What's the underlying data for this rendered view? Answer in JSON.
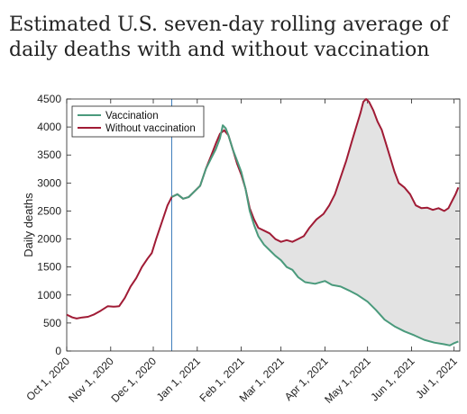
{
  "title": "Estimated U.S. seven-day rolling average of daily deaths with and without vaccination",
  "chart_data": {
    "type": "area",
    "ylabel": "Daily deaths",
    "xlabel": "",
    "ylim": [
      0,
      4500
    ],
    "yticks": [
      0,
      500,
      1000,
      1500,
      2000,
      2500,
      3000,
      3500,
      4000,
      4500
    ],
    "xlim": [
      "2020-10-01",
      "2021-07-05"
    ],
    "xticks": [
      "2020-10-01",
      "2020-11-01",
      "2020-12-01",
      "2021-01-01",
      "2021-02-01",
      "2021-03-01",
      "2021-04-01",
      "2021-05-01",
      "2021-06-01",
      "2021-07-01"
    ],
    "xtick_labels": [
      "Oct 1, 2020",
      "Nov 1, 2020",
      "Dec 1, 2020",
      "Jan 1, 2021",
      "Feb 1, 2021",
      "Mar 1, 2021",
      "Apr 1, 2021",
      "May 1, 2021",
      "Jun 1, 2021",
      "Jul 1, 2021"
    ],
    "reference_line_date": "2020-12-14",
    "shaded_between_series": true,
    "grid": false,
    "legend_position": "top-left",
    "colors": {
      "vaccination": "#4a9a7c",
      "without": "#a01b35",
      "reference": "#3d7dba",
      "shade": "#e3e3e3"
    },
    "series": [
      {
        "name": "Vaccination",
        "points": [
          [
            "2020-12-14",
            2750
          ],
          [
            "2020-12-18",
            2800
          ],
          [
            "2020-12-22",
            2720
          ],
          [
            "2020-12-26",
            2750
          ],
          [
            "2020-12-30",
            2850
          ],
          [
            "2021-01-03",
            2950
          ],
          [
            "2021-01-07",
            3250
          ],
          [
            "2021-01-11",
            3450
          ],
          [
            "2021-01-14",
            3600
          ],
          [
            "2021-01-17",
            3800
          ],
          [
            "2021-01-19",
            4030
          ],
          [
            "2021-01-21",
            3980
          ],
          [
            "2021-01-23",
            3850
          ],
          [
            "2021-01-26",
            3600
          ],
          [
            "2021-01-29",
            3400
          ],
          [
            "2021-02-01",
            3200
          ],
          [
            "2021-02-04",
            2900
          ],
          [
            "2021-02-07",
            2500
          ],
          [
            "2021-02-10",
            2250
          ],
          [
            "2021-02-13",
            2050
          ],
          [
            "2021-02-17",
            1900
          ],
          [
            "2021-02-21",
            1800
          ],
          [
            "2021-02-25",
            1700
          ],
          [
            "2021-03-01",
            1620
          ],
          [
            "2021-03-05",
            1500
          ],
          [
            "2021-03-09",
            1450
          ],
          [
            "2021-03-13",
            1320
          ],
          [
            "2021-03-18",
            1230
          ],
          [
            "2021-03-25",
            1200
          ],
          [
            "2021-04-01",
            1250
          ],
          [
            "2021-04-06",
            1180
          ],
          [
            "2021-04-12",
            1150
          ],
          [
            "2021-04-18",
            1080
          ],
          [
            "2021-04-24",
            1000
          ],
          [
            "2021-05-01",
            880
          ],
          [
            "2021-05-07",
            730
          ],
          [
            "2021-05-13",
            560
          ],
          [
            "2021-05-20",
            440
          ],
          [
            "2021-05-27",
            350
          ],
          [
            "2021-06-03",
            280
          ],
          [
            "2021-06-10",
            200
          ],
          [
            "2021-06-17",
            150
          ],
          [
            "2021-06-24",
            120
          ],
          [
            "2021-06-28",
            100
          ],
          [
            "2021-07-01",
            140
          ],
          [
            "2021-07-04",
            170
          ]
        ]
      },
      {
        "name": "Without vaccination",
        "points": [
          [
            "2020-10-01",
            650
          ],
          [
            "2020-10-05",
            600
          ],
          [
            "2020-10-08",
            580
          ],
          [
            "2020-10-12",
            600
          ],
          [
            "2020-10-16",
            610
          ],
          [
            "2020-10-20",
            650
          ],
          [
            "2020-10-25",
            720
          ],
          [
            "2020-10-30",
            800
          ],
          [
            "2020-11-03",
            790
          ],
          [
            "2020-11-07",
            800
          ],
          [
            "2020-11-11",
            950
          ],
          [
            "2020-11-15",
            1150
          ],
          [
            "2020-11-19",
            1300
          ],
          [
            "2020-11-23",
            1500
          ],
          [
            "2020-11-27",
            1650
          ],
          [
            "2020-11-30",
            1750
          ],
          [
            "2020-12-03",
            2000
          ],
          [
            "2020-12-07",
            2300
          ],
          [
            "2020-12-11",
            2600
          ],
          [
            "2020-12-14",
            2750
          ],
          [
            "2020-12-18",
            2800
          ],
          [
            "2020-12-22",
            2720
          ],
          [
            "2020-12-26",
            2750
          ],
          [
            "2020-12-30",
            2850
          ],
          [
            "2021-01-03",
            2950
          ],
          [
            "2021-01-07",
            3250
          ],
          [
            "2021-01-11",
            3500
          ],
          [
            "2021-01-14",
            3700
          ],
          [
            "2021-01-17",
            3880
          ],
          [
            "2021-01-20",
            3940
          ],
          [
            "2021-01-23",
            3850
          ],
          [
            "2021-01-26",
            3600
          ],
          [
            "2021-01-29",
            3350
          ],
          [
            "2021-02-01",
            3150
          ],
          [
            "2021-02-04",
            2900
          ],
          [
            "2021-02-07",
            2550
          ],
          [
            "2021-02-10",
            2350
          ],
          [
            "2021-02-13",
            2200
          ],
          [
            "2021-02-17",
            2150
          ],
          [
            "2021-02-21",
            2100
          ],
          [
            "2021-02-25",
            2000
          ],
          [
            "2021-03-01",
            1950
          ],
          [
            "2021-03-05",
            1980
          ],
          [
            "2021-03-09",
            1950
          ],
          [
            "2021-03-13",
            2000
          ],
          [
            "2021-03-17",
            2050
          ],
          [
            "2021-03-21",
            2200
          ],
          [
            "2021-03-26",
            2350
          ],
          [
            "2021-03-31",
            2450
          ],
          [
            "2021-04-04",
            2600
          ],
          [
            "2021-04-08",
            2800
          ],
          [
            "2021-04-12",
            3100
          ],
          [
            "2021-04-16",
            3400
          ],
          [
            "2021-04-20",
            3750
          ],
          [
            "2021-04-23",
            4000
          ],
          [
            "2021-04-26",
            4250
          ],
          [
            "2021-04-28",
            4450
          ],
          [
            "2021-04-30",
            4500
          ],
          [
            "2021-05-02",
            4450
          ],
          [
            "2021-05-05",
            4300
          ],
          [
            "2021-05-08",
            4100
          ],
          [
            "2021-05-11",
            3950
          ],
          [
            "2021-05-14",
            3700
          ],
          [
            "2021-05-17",
            3450
          ],
          [
            "2021-05-20",
            3200
          ],
          [
            "2021-05-23",
            3000
          ],
          [
            "2021-05-27",
            2920
          ],
          [
            "2021-05-31",
            2800
          ],
          [
            "2021-06-04",
            2600
          ],
          [
            "2021-06-08",
            2550
          ],
          [
            "2021-06-12",
            2560
          ],
          [
            "2021-06-16",
            2520
          ],
          [
            "2021-06-20",
            2550
          ],
          [
            "2021-06-24",
            2500
          ],
          [
            "2021-06-27",
            2550
          ],
          [
            "2021-06-30",
            2700
          ],
          [
            "2021-07-02",
            2800
          ],
          [
            "2021-07-04",
            2920
          ]
        ]
      }
    ]
  }
}
